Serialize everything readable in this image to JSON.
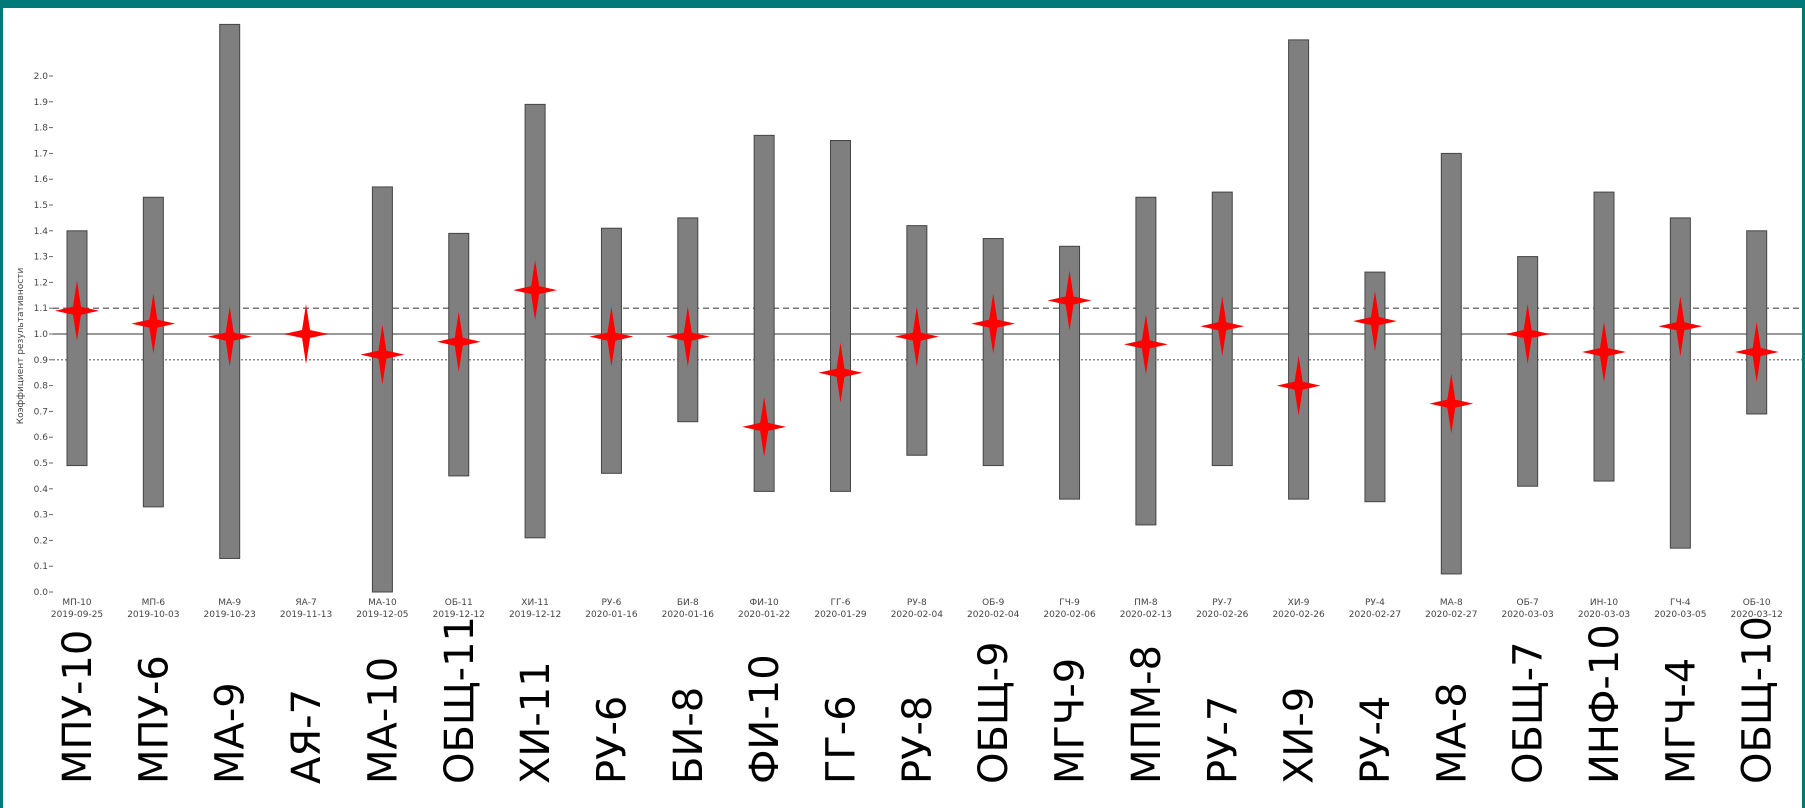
{
  "chart_data": {
    "type": "bar",
    "title": "",
    "xlabel": "",
    "ylabel": "Коэффициент результативности",
    "ylim": [
      0,
      2.2
    ],
    "yticks": [
      "0.0",
      "0.1",
      "0.2",
      "0.3",
      "0.4",
      "0.5",
      "0.6",
      "0.7",
      "0.8",
      "0.9",
      "1.0",
      "1.1",
      "1.2",
      "1.3",
      "1.4",
      "1.5",
      "1.6",
      "1.7",
      "1.8",
      "1.9",
      "2.0"
    ],
    "reference_lines": [
      {
        "y": 1.0,
        "style": "solid"
      },
      {
        "y": 1.1,
        "style": "dashed"
      },
      {
        "y": 0.9,
        "style": "dotted"
      }
    ],
    "grid": false,
    "categories": [
      "МП-10",
      "МП-6",
      "МА-9",
      "ЯА-7",
      "МА-10",
      "ОБ-11",
      "ХИ-11",
      "РУ-6",
      "БИ-8",
      "ФИ-10",
      "ГГ-6",
      "РУ-8",
      "ОБ-9",
      "ГЧ-9",
      "ПМ-8",
      "РУ-7",
      "ХИ-9",
      "РУ-4",
      "МА-8",
      "ОБ-7",
      "ИН-10",
      "ГЧ-4",
      "ОБ-10"
    ],
    "dates": [
      "2019-09-25",
      "2019-10-03",
      "2019-10-23",
      "2019-11-13",
      "2019-12-05",
      "2019-12-12",
      "2019-12-12",
      "2020-01-16",
      "2020-01-16",
      "2020-01-22",
      "2020-01-29",
      "2020-02-04",
      "2020-02-04",
      "2020-02-06",
      "2020-02-13",
      "2020-02-26",
      "2020-02-26",
      "2020-02-27",
      "2020-02-27",
      "2020-03-03",
      "2020-03-03",
      "2020-03-05",
      "2020-03-12"
    ],
    "big_labels": [
      "МПУ-10",
      "МПУ-6",
      "МА-9",
      "АЯ-7",
      "МА-10",
      "ОБЩ-11",
      "ХИ-11",
      "РУ-6",
      "БИ-8",
      "ФИ-10",
      "ГГ-6",
      "РУ-8",
      "ОБЩ-9",
      "МГЧ-9",
      "МПМ-8",
      "РУ-7",
      "ХИ-9",
      "РУ-4",
      "МА-8",
      "ОБЩ-7",
      "ИНФ-10",
      "МГЧ-4",
      "ОБЩ-10"
    ],
    "series": [
      {
        "type": "range-bar",
        "low": [
          0.49,
          0.33,
          0.13,
          null,
          0.0,
          0.45,
          0.21,
          0.46,
          0.66,
          0.39,
          0.39,
          0.53,
          0.49,
          0.36,
          0.26,
          0.49,
          0.36,
          0.35,
          0.07,
          0.41,
          0.43,
          0.17,
          0.69
        ],
        "high": [
          1.4,
          1.53,
          2.2,
          null,
          1.57,
          1.39,
          1.89,
          1.41,
          1.45,
          1.77,
          1.75,
          1.42,
          1.37,
          1.34,
          1.53,
          1.55,
          2.14,
          1.24,
          1.7,
          1.3,
          1.55,
          1.45,
          1.4
        ]
      },
      {
        "type": "marker",
        "marker": "four-point-star",
        "values": [
          1.09,
          1.04,
          0.99,
          1.0,
          0.92,
          0.97,
          1.17,
          0.99,
          0.99,
          0.64,
          0.85,
          0.99,
          1.04,
          1.13,
          0.96,
          1.03,
          0.8,
          1.05,
          0.73,
          1.0,
          0.93,
          1.03,
          0.93
        ]
      }
    ],
    "colors": {
      "bar_fill": "#7f7f7f",
      "bar_stroke": "#444444",
      "marker": "#ff0000",
      "frame": "#007a78"
    }
  }
}
